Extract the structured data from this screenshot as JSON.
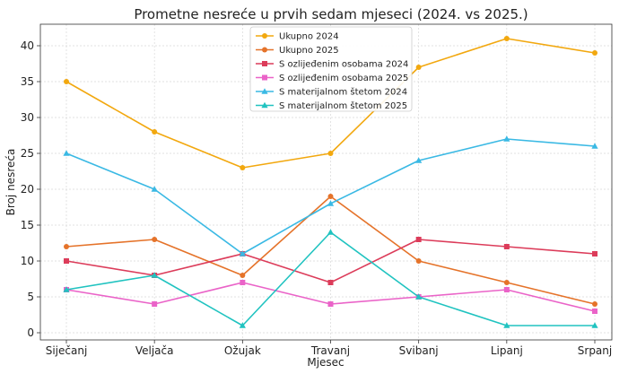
{
  "chart_data": {
    "type": "line",
    "title": "Prometne nesreće u prvih sedam mjeseci (2024. vs 2025.)",
    "xlabel": "Mjesec",
    "ylabel": "Broj nesreća",
    "categories": [
      "Siječanj",
      "Veljača",
      "Ožujak",
      "Travanj",
      "Svibanj",
      "Lipanj",
      "Srpanj"
    ],
    "ylim": [
      -1,
      43
    ],
    "yticks": [
      0,
      5,
      10,
      15,
      20,
      25,
      30,
      35,
      40
    ],
    "grid": true,
    "legend_position": "top-center",
    "series": [
      {
        "name": "Ukupno 2024",
        "color": "#f2a80f",
        "marker": "circle",
        "values": [
          35,
          28,
          23,
          25,
          37,
          41,
          39
        ]
      },
      {
        "name": "Ukupno 2025",
        "color": "#e5732a",
        "marker": "circle",
        "values": [
          12,
          13,
          8,
          19,
          10,
          7,
          4
        ]
      },
      {
        "name": "S ozlijeđenim osobama 2024",
        "color": "#dc3c5a",
        "marker": "square",
        "values": [
          10,
          8,
          11,
          7,
          13,
          12,
          11
        ]
      },
      {
        "name": "S ozlijeđenim osobama 2025",
        "color": "#ea63c8",
        "marker": "square",
        "values": [
          6,
          4,
          7,
          4,
          5,
          6,
          3
        ]
      },
      {
        "name": "S materijalnom štetom 2024",
        "color": "#3ab9e4",
        "marker": "triangle",
        "values": [
          25,
          20,
          11,
          18,
          24,
          27,
          26
        ]
      },
      {
        "name": "S materijalnom štetom 2025",
        "color": "#20c3c0",
        "marker": "triangle",
        "values": [
          6,
          8,
          1,
          14,
          5,
          1,
          1
        ]
      }
    ]
  }
}
